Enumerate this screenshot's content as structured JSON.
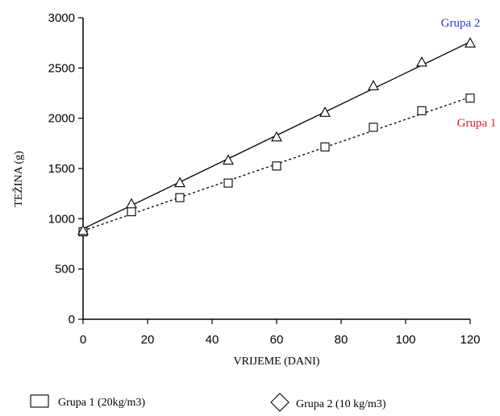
{
  "chart_data": {
    "type": "scatter",
    "title": "",
    "xlabel": "VRIJEME (DANI)",
    "ylabel": "TEŽINA (g)",
    "xlim": [
      0,
      120
    ],
    "ylim": [
      0,
      3000
    ],
    "xticks": [
      0,
      20,
      40,
      60,
      80,
      100,
      120
    ],
    "yticks": [
      0,
      500,
      1000,
      1500,
      2000,
      2500,
      3000
    ],
    "grid": false,
    "series": [
      {
        "name": "Grupa 1",
        "legend_label": "Grupa 1 (20kg/m3)",
        "marker": "square",
        "line_style": "dotted",
        "color": "#d62030",
        "x": [
          0,
          15,
          30,
          45,
          60,
          75,
          90,
          105,
          120
        ],
        "y": [
          870,
          1070,
          1210,
          1355,
          1525,
          1715,
          1910,
          2075,
          2200
        ],
        "fit": [
          880,
          2210
        ]
      },
      {
        "name": "Grupa 2",
        "legend_label": "Grupa 2 (10 kg/m3)",
        "marker": "triangle",
        "legend_marker": "diamond",
        "line_style": "solid",
        "color": "#2a3cc8",
        "x": [
          0,
          15,
          30,
          45,
          60,
          75,
          90,
          105,
          120
        ],
        "y": [
          880,
          1145,
          1355,
          1580,
          1810,
          2055,
          2320,
          2555,
          2745
        ],
        "fit": [
          900,
          2760
        ]
      }
    ]
  }
}
